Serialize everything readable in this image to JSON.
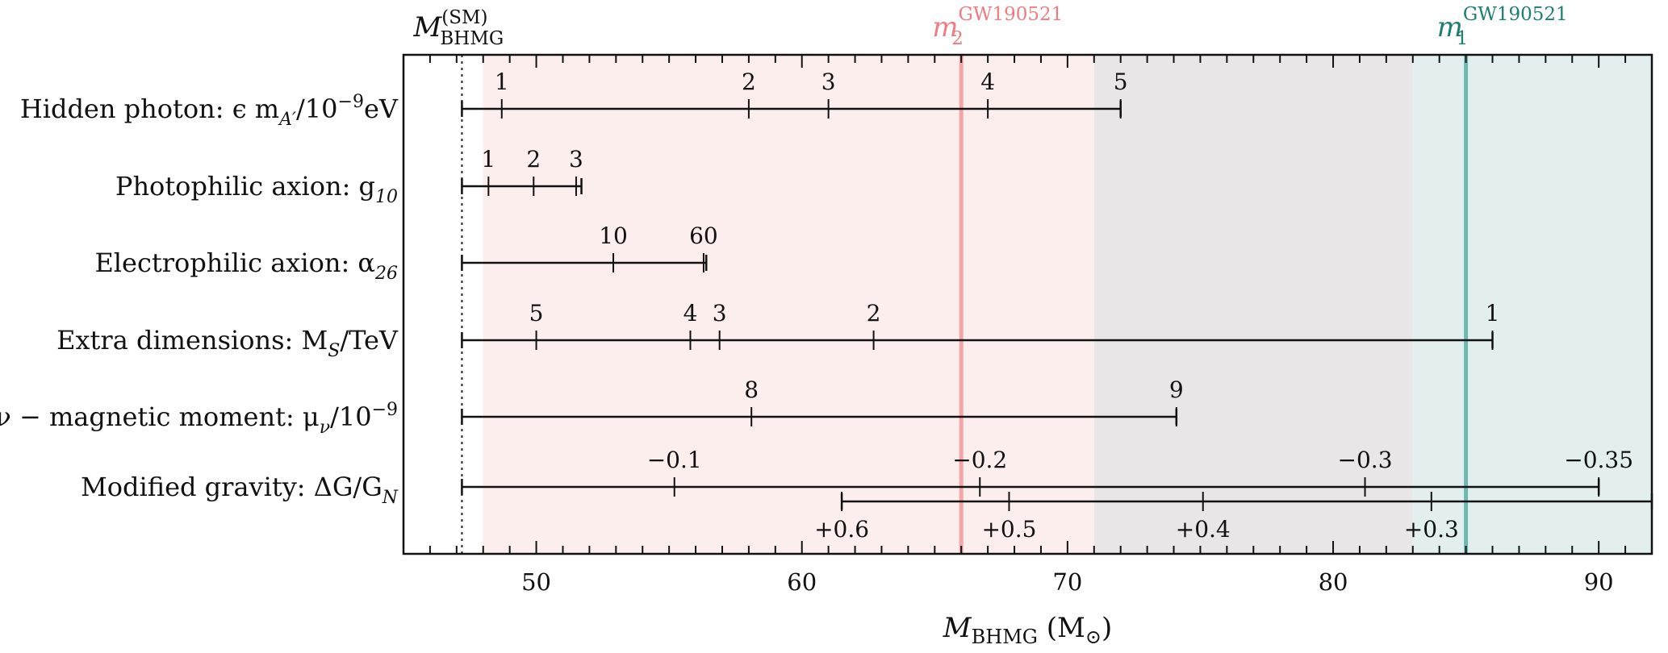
{
  "chart_data": {
    "type": "range-bar",
    "xlabel": {
      "main": "M",
      "sub": "BHMG",
      "unit": " (M",
      "unit_sub": "⊙",
      "unit_close": ")"
    },
    "xlim": [
      45,
      92
    ],
    "xticks": [
      50,
      60,
      70,
      80,
      90
    ],
    "baseline": {
      "label_main": "M",
      "label_sub": "BHMG",
      "label_sup": "(SM)",
      "value": 47.2
    },
    "bands": [
      {
        "from": 48.0,
        "to": 71.0,
        "color": "#fdeeee"
      },
      {
        "from": 71.0,
        "to": 83.0,
        "color": "#e8e6e7"
      },
      {
        "from": 83.0,
        "to": 92.0,
        "color": "#e3efef"
      }
    ],
    "vlines": [
      {
        "value": 66.0,
        "color": "#f5a5a8",
        "label_main": "m",
        "label_sub": "2",
        "label_sup": "GW190521",
        "label_color": "#f07c80"
      },
      {
        "value": 85.0,
        "color": "#6cb9b2",
        "label_main": "m",
        "label_sub": "1",
        "label_sup": "GW190521",
        "label_color": "#1b7f74"
      }
    ],
    "rows": [
      {
        "label": "Hidden photon: ϵ m",
        "label_sub": "A′",
        "label_tail": "/10",
        "label_sup": "−9",
        "label_end": "eV",
        "start": 47.2,
        "end": 72.0,
        "marks": [
          {
            "x": 48.7,
            "text": "1"
          },
          {
            "x": 58.0,
            "text": "2"
          },
          {
            "x": 61.0,
            "text": "3"
          },
          {
            "x": 67.0,
            "text": "4"
          },
          {
            "x": 72.0,
            "text": "5"
          }
        ]
      },
      {
        "label": "Photophilic axion: g",
        "label_sub": "10",
        "label_tail": "",
        "label_sup": "",
        "label_end": "",
        "start": 47.2,
        "end": 51.7,
        "marks": [
          {
            "x": 48.2,
            "text": "1"
          },
          {
            "x": 49.9,
            "text": "2"
          },
          {
            "x": 51.5,
            "text": "3"
          }
        ]
      },
      {
        "label": "Electrophilic axion: α",
        "label_sub": "26",
        "label_tail": "",
        "label_sup": "",
        "label_end": "",
        "start": 47.2,
        "end": 56.4,
        "marks": [
          {
            "x": 52.9,
            "text": "10"
          },
          {
            "x": 56.3,
            "text": "60"
          }
        ]
      },
      {
        "label": "Extra dimensions:  M",
        "label_sub": "S",
        "label_tail": "/TeV",
        "label_sup": "",
        "label_end": "",
        "start": 47.2,
        "end": 86.0,
        "marks": [
          {
            "x": 50.0,
            "text": "5"
          },
          {
            "x": 55.8,
            "text": "4"
          },
          {
            "x": 56.9,
            "text": "3"
          },
          {
            "x": 62.7,
            "text": "2"
          },
          {
            "x": 86.0,
            "text": "1"
          }
        ]
      },
      {
        "label": "ν − magnetic moment: μ",
        "label_sub": "ν",
        "label_tail": "/10",
        "label_sup": "−9",
        "label_end": "",
        "start": 47.2,
        "end": 74.1,
        "marks": [
          {
            "x": 58.1,
            "text": "8"
          },
          {
            "x": 74.1,
            "text": "9"
          }
        ]
      },
      {
        "label": "Modified gravity: ΔG/G",
        "label_sub": "N",
        "label_tail": "",
        "label_sup": "",
        "label_end": "",
        "start": 47.2,
        "end": 90.0,
        "marks": [
          {
            "x": 55.2,
            "text": "−0.1"
          },
          {
            "x": 66.7,
            "text": "−0.2"
          },
          {
            "x": 81.2,
            "text": "−0.3"
          },
          {
            "x": 90.0,
            "text": "−0.35"
          }
        ],
        "secondary": {
          "start": 61.5,
          "end": 92.0,
          "marks": [
            {
              "x": 61.5,
              "text": "+0.6"
            },
            {
              "x": 67.8,
              "text": "+0.5"
            },
            {
              "x": 75.1,
              "text": "+0.4"
            },
            {
              "x": 83.7,
              "text": "+0.3"
            }
          ]
        }
      }
    ]
  }
}
